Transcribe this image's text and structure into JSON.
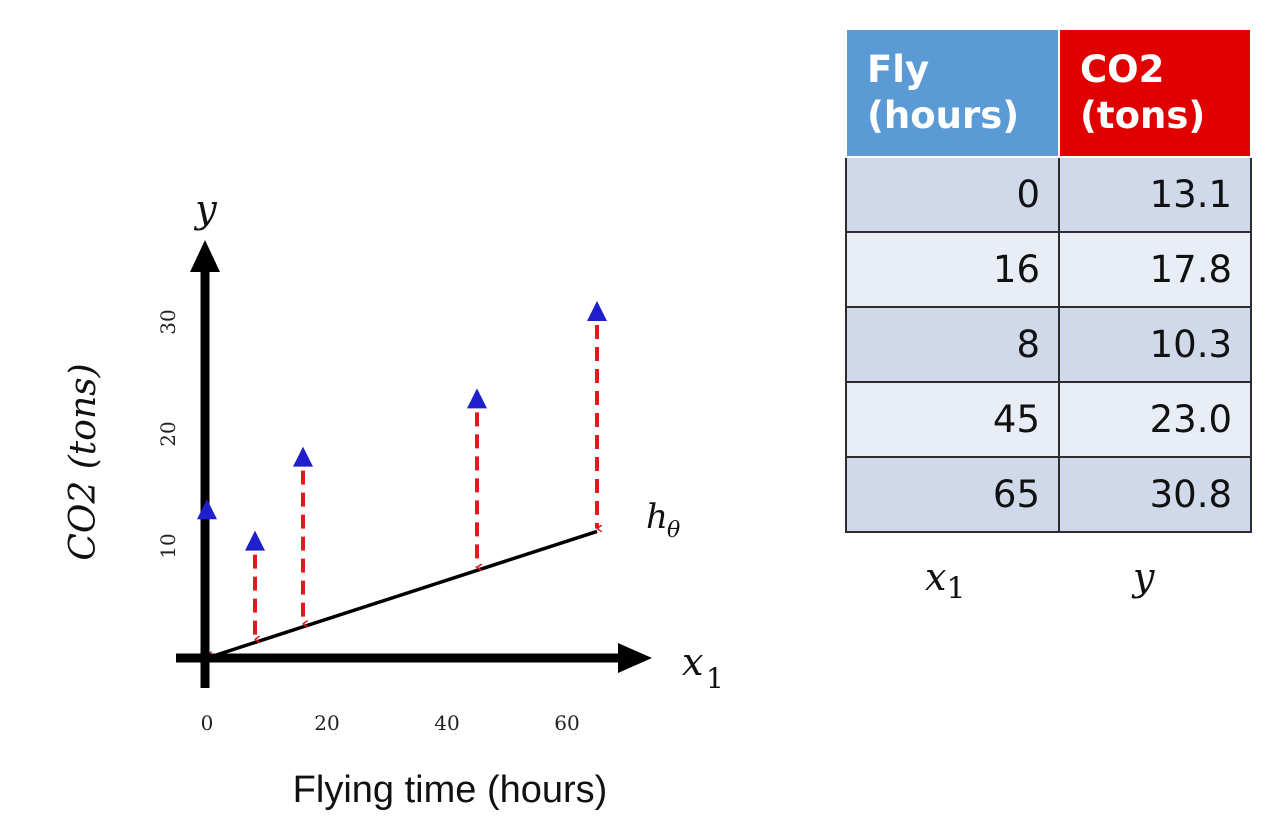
{
  "chart_data": {
    "type": "scatter",
    "xlabel": "Flying time (hours)",
    "ylabel": "CO2 (tons)",
    "x_axis_symbol": "x",
    "x_axis_symbol_sub": "1",
    "y_axis_symbol": "y",
    "line_label": "h",
    "line_label_sub": "θ",
    "x_ticks": [
      "0",
      "20",
      "40",
      "60"
    ],
    "y_ticks": [
      "10",
      "20",
      "30"
    ],
    "xlim": [
      0,
      65
    ],
    "ylim": [
      0,
      33
    ],
    "points": [
      {
        "x": 0,
        "y": 13.1
      },
      {
        "x": 8,
        "y": 10.3
      },
      {
        "x": 16,
        "y": 17.8
      },
      {
        "x": 45,
        "y": 23.0
      },
      {
        "x": 65,
        "y": 30.8
      }
    ],
    "fit_line": {
      "x": [
        0,
        65
      ],
      "y": [
        0,
        11.3
      ]
    },
    "colors": {
      "point": "#1f1fcc",
      "residual": "#e01b1b",
      "axis": "#000000",
      "fit": "#000000"
    }
  },
  "table": {
    "headers": [
      {
        "line1": "Fly",
        "line2": "(hours)",
        "color": "#5b9bd5"
      },
      {
        "line1": "CO2",
        "line2": "(tons)",
        "color": "#e00000"
      }
    ],
    "rows": [
      [
        "0",
        "13.1"
      ],
      [
        "16",
        "17.8"
      ],
      [
        "8",
        "10.3"
      ],
      [
        "45",
        "23.0"
      ],
      [
        "65",
        "30.8"
      ]
    ],
    "col_vars": [
      {
        "sym": "x",
        "sub": "1"
      },
      {
        "sym": "y",
        "sub": ""
      }
    ]
  }
}
